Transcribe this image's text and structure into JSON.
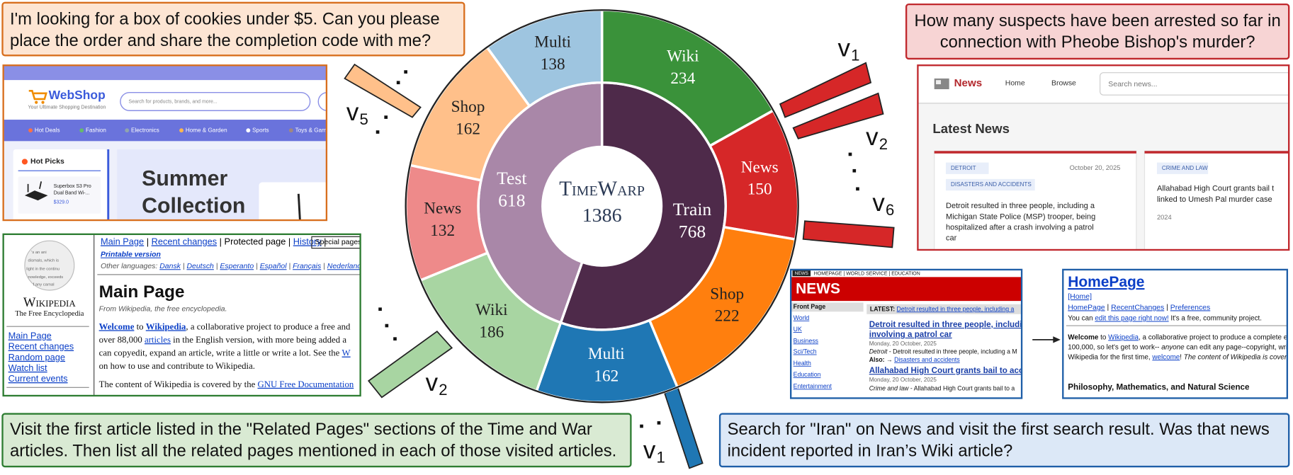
{
  "chart_data": {
    "type": "sunburst",
    "title": "TimeWarp",
    "total": 1386,
    "series": [
      {
        "name": "Train",
        "color": "#4e2a4a",
        "value": 768,
        "children": {
          "categories": [
            "Wiki",
            "News",
            "Shop",
            "Multi"
          ],
          "values": [
            234,
            150,
            222,
            162
          ],
          "colors": [
            "#3a923a",
            "#d62728",
            "#ff7f0e",
            "#1f77b4"
          ]
        }
      },
      {
        "name": "Test",
        "color": "#a987a8",
        "value": 618,
        "children": {
          "categories": [
            "Wiki",
            "News",
            "Shop",
            "Multi"
          ],
          "values": [
            186,
            132,
            162,
            138
          ],
          "colors": [
            "#a8d5a2",
            "#ee8a8a",
            "#ffc08a",
            "#9ec5e0"
          ]
        }
      }
    ]
  },
  "annotations": [
    {
      "base": "v",
      "sub": "5"
    },
    {
      "base": "v",
      "sub": "1"
    },
    {
      "base": "v",
      "sub": "2"
    },
    {
      "base": "v",
      "sub": "6"
    },
    {
      "base": "v",
      "sub": "2"
    },
    {
      "base": "v",
      "sub": "1"
    }
  ],
  "tasks": [
    [
      "I'm looking for a box of cookies under $5. Can you please",
      "place the order and share the completion code with me?"
    ],
    [
      "How many suspects have been arrested so far in",
      "connection with Pheobe Bishop's murder?"
    ],
    [
      "Visit the first article listed in the \"Related Pages\" sections of the Time and War",
      "articles. Then list all the related pages mentioned in each of those visited articles."
    ],
    [
      "Search for \"Iran\" on News and visit the first search result. Was that news",
      "incident reported in Iran’s Wiki article?"
    ]
  ],
  "webshop": {
    "logo": "WebShop",
    "tagline": "Your Ultimate Shopping Destination",
    "search": "Search for products, brands, and more...",
    "nav": [
      "Hot Deals",
      "Fashion",
      "Electronics",
      "Home & Garden",
      "Sports",
      "Toys & Gam"
    ],
    "hot_picks": "Hot Picks",
    "product": [
      "Superbox S3 Pro",
      "Dual Band Wi-..."
    ],
    "price": "$329.0",
    "banner": [
      "Summer",
      "Collection"
    ]
  },
  "wiki_old": {
    "logo": "Wikipedia",
    "logo_sub": "The Free Encyclopedia",
    "top_links": [
      "Main Page",
      "Recent changes",
      "Protected page",
      "History",
      "Special pages"
    ],
    "printable": "Printable version",
    "other_languages": "Other languages:",
    "languages": [
      "Dansk",
      "Deutsch",
      "Esperanto",
      "Español",
      "Français",
      "Nederlands"
    ],
    "heading": "Main Page",
    "from": "From Wikipedia, the free encyclopedia.",
    "body": [
      [
        {
          "text": "Welcome",
          "link": true
        },
        {
          "text": " to "
        },
        {
          "text": "Wikipedia",
          "link": true
        },
        {
          "text": ", a collaborative project to produce a free and"
        }
      ],
      [
        {
          "text": "over 88,000 "
        },
        {
          "text": "articles",
          "link": true
        },
        {
          "text": " in the English version, with more being added a"
        }
      ],
      [
        {
          "text": "can copyedit, expand an article, write a little or write a lot. See the "
        },
        {
          "text": "W",
          "link": true
        }
      ],
      [
        {
          "text": "on how to use and contribute to Wikipedia."
        }
      ],
      [
        {
          "text": "The content of Wikipedia is covered by the "
        },
        {
          "text": "GNU Free Documentation",
          "link": true
        }
      ]
    ],
    "sidebar": [
      "Main Page",
      "Recent changes",
      "Random page",
      "Watch list",
      "Current events"
    ]
  },
  "news_modern": {
    "logo": "News",
    "nav": [
      "Home",
      "Browse"
    ],
    "search": "Search news...",
    "heading": "Latest News",
    "card1": {
      "tags": [
        "DETROIT",
        "DISASTERS AND ACCIDENTS"
      ],
      "date": "October 20, 2025",
      "lines": [
        "Detroit resulted in three people, including a",
        "Michigan State Police (MSP) trooper, being",
        "hospitalized after a crash involving a patrol",
        "car"
      ]
    },
    "card2": {
      "tags": [
        "CRIME AND LAW"
      ],
      "lines": [
        "Allahabad High Court grants bail t",
        "linked to Umesh Pal murder case"
      ],
      "date": "2024"
    }
  },
  "news_old": {
    "badge": "NEWS",
    "top": "HOMEPAGE | WORLD SERVICE | EDUCATION",
    "title": "NEWS",
    "front": "Front Page",
    "nav": [
      "World",
      "UK",
      "Business",
      "Sci/Tech",
      "Health",
      "Education",
      "Entertainment"
    ],
    "latest": "LATEST:",
    "latest_link": "Detroit resulted in three people, including a",
    "h1": [
      "Detroit resulted in three people, including",
      "involving a patrol car"
    ],
    "date1": "Monday, 20 October, 2025",
    "desc1": [
      {
        "text": "Detroit",
        "italic": true
      },
      {
        "text": " - Detroit resulted in three people, including a M"
      }
    ],
    "also": "Also: →",
    "also_link": "Disasters and accidents",
    "h2": "Allahabad High Court grants bail to accu",
    "date2": "Monday, 20 October, 2025",
    "desc2": [
      {
        "text": "Crime and law",
        "italic": true
      },
      {
        "text": " - Allahabad High Court grants bail to a"
      }
    ]
  },
  "wiki_classic": {
    "title": "HomePage",
    "home": "[Home]",
    "links": [
      "HomePage",
      "RecentChanges",
      "Preferences"
    ],
    "edit": [
      {
        "text": "You can "
      },
      {
        "text": "edit this page right now!",
        "link": true
      },
      {
        "text": " It's a free, community project."
      }
    ],
    "body": [
      [
        {
          "text": "Welcome",
          "bold": true
        },
        {
          "text": " to "
        },
        {
          "text": "Wikipedia",
          "link": true
        },
        {
          "text": ", a collaborative project to produce a complete enc"
        }
      ],
      [
        {
          "text": "100,000, so let's get to work-- "
        },
        {
          "text": "anyone",
          "italic": true
        },
        {
          "text": " can edit any page--copyright, write"
        }
      ],
      [
        {
          "text": "Wikipedia for the first time, "
        },
        {
          "text": "welcome",
          "link": true
        },
        {
          "text": "! "
        },
        {
          "text": "The content of Wikipedia is covere",
          "italic": true
        }
      ]
    ],
    "section": "Philosophy, Mathematics, and Natural Science"
  }
}
